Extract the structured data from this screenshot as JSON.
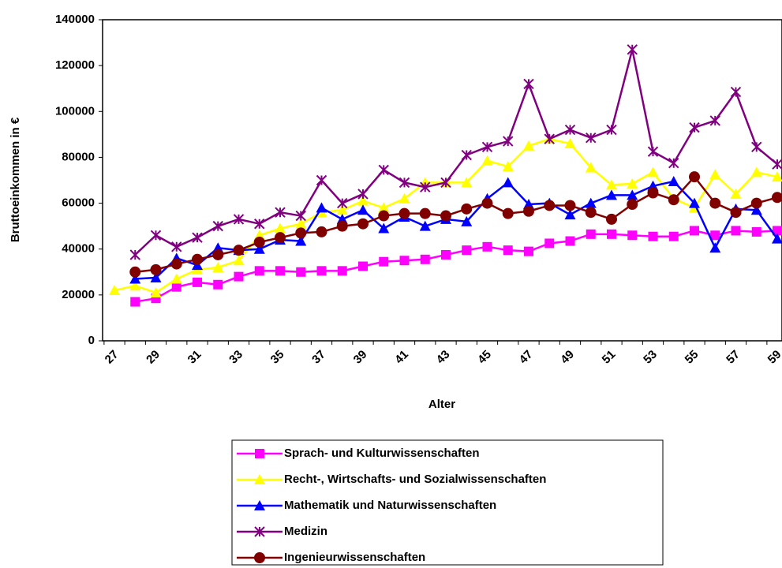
{
  "chart_data": {
    "type": "line",
    "x_label": "Alter",
    "y_label": "Bruttoeinkommen in €",
    "categories": [
      "27",
      null,
      "29",
      null,
      "31",
      null,
      "33",
      null,
      "35",
      null,
      "37",
      null,
      "39",
      null,
      "41",
      null,
      "43",
      null,
      "45",
      null,
      "47",
      null,
      "49",
      null,
      "51",
      null,
      "53",
      null,
      "55",
      null,
      "57",
      null,
      "59"
    ],
    "ylim": [
      0,
      140000
    ],
    "yticks": [
      0,
      20000,
      40000,
      60000,
      80000,
      100000,
      120000,
      140000
    ],
    "grid": false,
    "series": [
      {
        "name": "Sprach- und Kulturwissenschaften",
        "color": "#ff00ff",
        "marker": "square",
        "values": [
          null,
          17000,
          18500,
          23500,
          25500,
          24500,
          28000,
          30500,
          30500,
          30000,
          30500,
          30500,
          32500,
          34500,
          35000,
          35500,
          37500,
          39500,
          41000,
          39500,
          39000,
          42500,
          43500,
          46500,
          46500,
          46000,
          45500,
          45500,
          48000,
          46000,
          48000,
          47500,
          48000
        ]
      },
      {
        "name": "Recht-, Wirtschafts- und Sozialwissenschaften",
        "color": "#ffff00",
        "marker": "triangle",
        "values": [
          22000,
          24000,
          21000,
          27000,
          31000,
          32000,
          35000,
          46000,
          49000,
          51000,
          56000,
          57000,
          61000,
          58000,
          62000,
          69000,
          69000,
          69000,
          78500,
          76000,
          85000,
          88000,
          86000,
          75500,
          68000,
          68500,
          73500,
          62000,
          58000,
          72500,
          64000,
          73500,
          71500
        ]
      },
      {
        "name": "Mathematik und Naturwissenschaften",
        "color": "#0000ff",
        "marker": "triangle",
        "values": [
          null,
          27000,
          27500,
          36000,
          33000,
          40500,
          39500,
          40000,
          44000,
          43500,
          58000,
          53000,
          57000,
          49000,
          54000,
          50000,
          53000,
          52000,
          62000,
          69000,
          59500,
          60000,
          55000,
          60000,
          63500,
          63500,
          67500,
          69500,
          60000,
          40500,
          57500,
          57000,
          44500
        ]
      },
      {
        "name": "Medizin",
        "color": "#800080",
        "marker": "star",
        "values": [
          null,
          37500,
          46000,
          41000,
          45000,
          50000,
          53000,
          51000,
          56000,
          54500,
          70000,
          60000,
          64000,
          74500,
          69000,
          67000,
          69000,
          81000,
          84500,
          87000,
          112000,
          88000,
          92000,
          88500,
          92000,
          127000,
          82500,
          77500,
          93000,
          96000,
          108500,
          84500,
          77000
        ]
      },
      {
        "name": "Ingenieurwissenschaften",
        "color": "#800000",
        "marker": "circle",
        "values": [
          null,
          30000,
          31000,
          33500,
          35500,
          37500,
          39500,
          43000,
          45000,
          47000,
          47500,
          50000,
          51000,
          54500,
          55500,
          55500,
          54500,
          57500,
          60000,
          55500,
          56500,
          59000,
          59000,
          56000,
          53000,
          59500,
          64500,
          61500,
          71500,
          60000,
          56000,
          60000,
          62500
        ]
      }
    ]
  }
}
